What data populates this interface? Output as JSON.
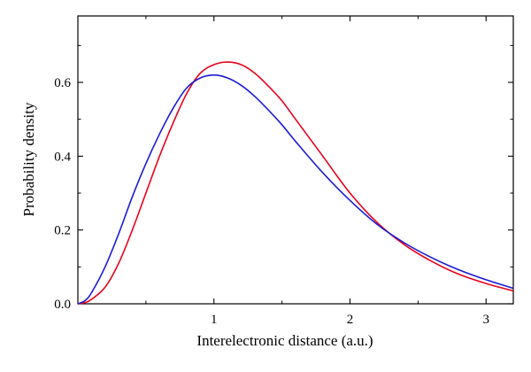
{
  "chart_data": {
    "type": "line",
    "title": "",
    "xlabel": "Interelectronic distance (a.u.)",
    "ylabel": "Probability density",
    "xlim": [
      0,
      3.2
    ],
    "ylim": [
      0,
      0.78
    ],
    "xticks": [
      1,
      2,
      3
    ],
    "xtick_labels": [
      "1",
      "2",
      "3"
    ],
    "yticks": [
      0,
      0.2,
      0.4,
      0.6
    ],
    "ytick_labels": [
      "0.0",
      "0.2",
      "0.4",
      "0.6"
    ],
    "grid": false,
    "legend": "none",
    "series": [
      {
        "color": "#e8001c",
        "x": [
          0,
          0.05,
          0.1,
          0.2,
          0.3,
          0.4,
          0.5,
          0.6,
          0.7,
          0.8,
          0.9,
          1.0,
          1.1,
          1.2,
          1.3,
          1.4,
          1.5,
          1.6,
          1.8,
          2.0,
          2.2,
          2.4,
          2.6,
          2.8,
          3.0,
          3.2
        ],
        "values": [
          0.0,
          0.003,
          0.012,
          0.045,
          0.11,
          0.2,
          0.3,
          0.4,
          0.49,
          0.57,
          0.625,
          0.648,
          0.655,
          0.648,
          0.625,
          0.59,
          0.55,
          0.5,
          0.4,
          0.3,
          0.22,
          0.16,
          0.115,
          0.08,
          0.055,
          0.035
        ]
      },
      {
        "color": "#1a1ad6",
        "x": [
          0,
          0.05,
          0.1,
          0.2,
          0.3,
          0.4,
          0.5,
          0.6,
          0.7,
          0.8,
          0.9,
          1.0,
          1.1,
          1.2,
          1.3,
          1.4,
          1.5,
          1.6,
          1.8,
          2.0,
          2.2,
          2.4,
          2.6,
          2.8,
          3.0,
          3.2
        ],
        "values": [
          0.0,
          0.008,
          0.03,
          0.1,
          0.19,
          0.29,
          0.38,
          0.46,
          0.53,
          0.585,
          0.612,
          0.62,
          0.612,
          0.592,
          0.562,
          0.525,
          0.485,
          0.44,
          0.355,
          0.28,
          0.215,
          0.165,
          0.125,
          0.092,
          0.065,
          0.042
        ]
      }
    ]
  }
}
